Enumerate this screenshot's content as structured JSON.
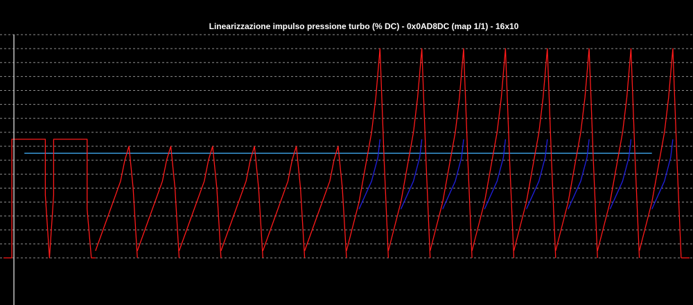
{
  "chart_data": {
    "type": "line",
    "title": "Linearizzazione impulso pressione turbo (% DC) - 0x0AD8DC (map 1/1) - 16x10",
    "xlabel": "",
    "ylabel": "",
    "grid": true,
    "background": "#000000",
    "grid_color": "#c0c0c0",
    "title_color": "#ffffff",
    "cursor_color": "#c0c0c0",
    "x_range": [
      0,
      164
    ],
    "y_range": [
      0,
      16
    ],
    "cursor_x": 2.5,
    "hlines": [
      {
        "y": 7.5,
        "color": "#3a9ad9",
        "x_start": 5,
        "x_end": 155
      }
    ],
    "series": [
      {
        "color": "#ff1a1a",
        "segments": [
          {
            "x": [
              0,
              1,
              2,
              2,
              10,
              10,
              11,
              12,
              12,
              20,
              20,
              21,
              22
            ],
            "y": [
              0,
              0,
              0,
              8.5,
              8.5,
              4.5,
              0,
              4.5,
              8.5,
              8.5,
              3.5,
              0,
              0
            ]
          },
          {
            "x": [
              22,
              25,
              28,
              29,
              30,
              31,
              32
            ],
            "y": [
              0.5,
              3.0,
              5.5,
              7.0,
              8.0,
              5.0,
              0
            ]
          },
          {
            "x": [
              32,
              35,
              38,
              39,
              40,
              41,
              42
            ],
            "y": [
              0.5,
              3.0,
              5.5,
              7.0,
              8.0,
              5.0,
              0
            ]
          },
          {
            "x": [
              42,
              45,
              48,
              49,
              50,
              51,
              52
            ],
            "y": [
              0.5,
              3.0,
              5.5,
              7.0,
              8.0,
              5.0,
              0
            ]
          },
          {
            "x": [
              52,
              55,
              58,
              59,
              60,
              61,
              62
            ],
            "y": [
              0.5,
              3.0,
              5.5,
              7.0,
              8.0,
              5.0,
              0
            ]
          },
          {
            "x": [
              62,
              65,
              68,
              69,
              70,
              71,
              72
            ],
            "y": [
              0.5,
              3.0,
              5.5,
              7.0,
              8.0,
              5.0,
              0
            ]
          },
          {
            "x": [
              72,
              75,
              78,
              79,
              80,
              81,
              82
            ],
            "y": [
              0.5,
              3.0,
              5.5,
              7.0,
              8.0,
              5.0,
              0
            ]
          },
          {
            "x": [
              82,
              85,
              88,
              89,
              90,
              91,
              92
            ],
            "y": [
              0.5,
              4.0,
              9.0,
              11.5,
              15.0,
              7.0,
              0
            ]
          },
          {
            "x": [
              92,
              95,
              98,
              99,
              100,
              101,
              102
            ],
            "y": [
              0.5,
              4.0,
              9.0,
              11.5,
              15.0,
              7.0,
              0
            ]
          },
          {
            "x": [
              102,
              105,
              108,
              109,
              110,
              111,
              112
            ],
            "y": [
              0.5,
              4.0,
              9.0,
              11.5,
              15.0,
              7.0,
              0
            ]
          },
          {
            "x": [
              112,
              115,
              118,
              119,
              120,
              121,
              122
            ],
            "y": [
              0.5,
              4.0,
              9.0,
              11.5,
              15.0,
              7.0,
              0
            ]
          },
          {
            "x": [
              122,
              125,
              128,
              129,
              130,
              131,
              132
            ],
            "y": [
              0.5,
              4.0,
              9.0,
              11.5,
              15.0,
              7.0,
              0
            ]
          },
          {
            "x": [
              132,
              135,
              138,
              139,
              140,
              141,
              142
            ],
            "y": [
              0.5,
              4.0,
              9.0,
              11.5,
              15.0,
              7.0,
              0
            ]
          },
          {
            "x": [
              142,
              145,
              148,
              149,
              150,
              151,
              152
            ],
            "y": [
              0.5,
              4.0,
              9.0,
              11.5,
              15.0,
              7.0,
              0
            ]
          },
          {
            "x": [
              152,
              155,
              158,
              159,
              160,
              161,
              162
            ],
            "y": [
              0.5,
              4.0,
              9.0,
              11.5,
              15.0,
              7.0,
              0
            ]
          },
          {
            "x": [
              162,
              164
            ],
            "y": [
              0,
              0
            ]
          }
        ]
      },
      {
        "color": "#2020e0",
        "segments": [
          {
            "x": [
              85,
              88,
              89.5,
              90
            ],
            "y": [
              3.5,
              5.5,
              7.2,
              8.5
            ]
          },
          {
            "x": [
              95,
              98,
              99.5,
              100
            ],
            "y": [
              3.5,
              5.5,
              7.2,
              8.5
            ]
          },
          {
            "x": [
              105,
              108,
              109.5,
              110
            ],
            "y": [
              3.5,
              5.5,
              7.2,
              8.5
            ]
          },
          {
            "x": [
              115,
              118,
              119.5,
              120
            ],
            "y": [
              3.5,
              5.5,
              7.2,
              8.5
            ]
          },
          {
            "x": [
              125,
              128,
              129.5,
              130
            ],
            "y": [
              3.5,
              5.5,
              7.2,
              8.5
            ]
          },
          {
            "x": [
              135,
              138,
              139.5,
              140
            ],
            "y": [
              3.5,
              5.5,
              7.2,
              8.5
            ]
          },
          {
            "x": [
              145,
              148,
              149.5,
              150
            ],
            "y": [
              3.5,
              5.5,
              7.2,
              8.5
            ]
          },
          {
            "x": [
              155,
              158,
              159.5,
              160
            ],
            "y": [
              3.5,
              5.5,
              7.2,
              8.5
            ]
          }
        ]
      }
    ]
  }
}
